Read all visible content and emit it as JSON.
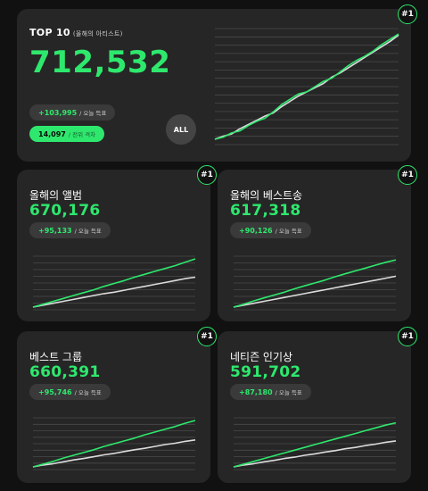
{
  "colors": {
    "accent": "#2ee86d",
    "line_gray": "#dcdcdc",
    "card_bg": "#262626",
    "page_bg": "#111111"
  },
  "top_card": {
    "rank": "#1",
    "title": "TOP 10",
    "subtitle": "(올해의 아티스트)",
    "votes": "712,532",
    "today_delta": "+103,995",
    "today_label": "/ 오늘 득표",
    "gap_value": "14,097",
    "gap_label": "/ 전위 격차",
    "all_button": "ALL",
    "chart_data": {
      "type": "line",
      "series": [
        {
          "color": "#2ee86d",
          "values": [
            0.0,
            0.02,
            0.06,
            0.08,
            0.13,
            0.17,
            0.2,
            0.26,
            0.33,
            0.38,
            0.43,
            0.45,
            0.5,
            0.55,
            0.58,
            0.64,
            0.7,
            0.75,
            0.79,
            0.84,
            0.9,
            0.95,
            1.0
          ]
        },
        {
          "color": "#dcdcdc",
          "values": [
            0.0,
            0.03,
            0.05,
            0.1,
            0.14,
            0.18,
            0.22,
            0.25,
            0.31,
            0.36,
            0.41,
            0.45,
            0.49,
            0.53,
            0.59,
            0.63,
            0.68,
            0.73,
            0.78,
            0.83,
            0.88,
            0.93,
            0.99
          ]
        }
      ]
    }
  },
  "cards": [
    {
      "rank": "#1",
      "title": "올해의 앨범",
      "votes": "670,176",
      "today_delta": "+95,133",
      "today_label": "/ 오늘 득표",
      "chart_data": {
        "type": "line",
        "series": [
          {
            "color": "#2ee86d",
            "values": [
              0.0,
              0.06,
              0.12,
              0.18,
              0.24,
              0.3,
              0.36,
              0.43,
              0.49,
              0.55,
              0.62,
              0.68,
              0.74,
              0.8,
              0.86,
              0.93,
              1.0
            ]
          },
          {
            "color": "#dcdcdc",
            "values": [
              0.0,
              0.04,
              0.08,
              0.12,
              0.16,
              0.2,
              0.24,
              0.28,
              0.31,
              0.35,
              0.39,
              0.43,
              0.47,
              0.51,
              0.55,
              0.59,
              0.62
            ]
          }
        ]
      }
    },
    {
      "rank": "#1",
      "title": "올해의 베스트송",
      "votes": "617,318",
      "today_delta": "+90,126",
      "today_label": "/ 오늘 득표",
      "chart_data": {
        "type": "line",
        "series": [
          {
            "color": "#2ee86d",
            "values": [
              0.0,
              0.06,
              0.13,
              0.19,
              0.25,
              0.31,
              0.38,
              0.44,
              0.5,
              0.56,
              0.63,
              0.69,
              0.75,
              0.81,
              0.87,
              0.93,
              0.98
            ]
          },
          {
            "color": "#dcdcdc",
            "values": [
              0.0,
              0.04,
              0.08,
              0.12,
              0.16,
              0.2,
              0.24,
              0.28,
              0.32,
              0.36,
              0.4,
              0.44,
              0.48,
              0.52,
              0.56,
              0.6,
              0.64
            ]
          }
        ]
      }
    },
    {
      "rank": "#1",
      "title": "베스트 그룹",
      "votes": "660,391",
      "today_delta": "+95,746",
      "today_label": "/ 오늘 득표",
      "chart_data": {
        "type": "line",
        "series": [
          {
            "color": "#2ee86d",
            "values": [
              0.0,
              0.06,
              0.12,
              0.19,
              0.25,
              0.31,
              0.37,
              0.44,
              0.5,
              0.56,
              0.62,
              0.69,
              0.75,
              0.81,
              0.87,
              0.94,
              1.0
            ]
          },
          {
            "color": "#dcdcdc",
            "values": [
              0.0,
              0.04,
              0.07,
              0.11,
              0.15,
              0.18,
              0.22,
              0.26,
              0.29,
              0.33,
              0.37,
              0.4,
              0.44,
              0.48,
              0.51,
              0.55,
              0.58
            ]
          }
        ]
      }
    },
    {
      "rank": "#1",
      "title": "네티즌 인기상",
      "votes": "591,702",
      "today_delta": "+87,180",
      "today_label": "/ 오늘 득표",
      "chart_data": {
        "type": "line",
        "series": [
          {
            "color": "#2ee86d",
            "values": [
              0.0,
              0.06,
              0.12,
              0.18,
              0.24,
              0.3,
              0.36,
              0.42,
              0.48,
              0.54,
              0.6,
              0.66,
              0.72,
              0.78,
              0.84,
              0.9,
              0.95
            ]
          },
          {
            "color": "#dcdcdc",
            "values": [
              0.0,
              0.04,
              0.07,
              0.11,
              0.14,
              0.18,
              0.21,
              0.25,
              0.28,
              0.32,
              0.35,
              0.39,
              0.42,
              0.46,
              0.49,
              0.53,
              0.56
            ]
          }
        ]
      }
    }
  ]
}
